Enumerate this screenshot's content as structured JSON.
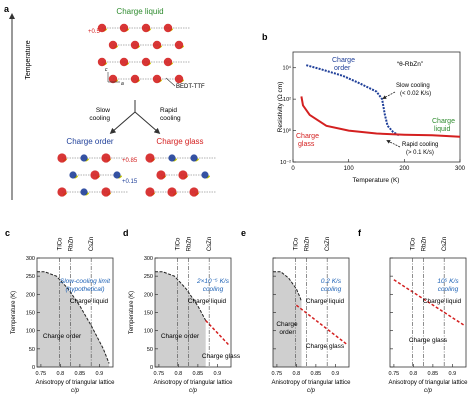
{
  "panels": {
    "a": {
      "letter": "a",
      "axis_label": "Temperature",
      "top_state": "Charge liquid",
      "charge_top": "+0.5",
      "molecule_label": "BEDT-TTF",
      "lattice_a": "a",
      "lattice_c": "c",
      "slow_label": [
        "Slow",
        "cooling"
      ],
      "rapid_label": [
        "Rapid",
        "cooling"
      ],
      "left_state": "Charge order",
      "right_state": "Charge glass",
      "charge_rich": "+0.85",
      "charge_poor": "+0.15"
    },
    "b": {
      "letter": "b",
      "compound": "“θ-RbZn”",
      "label_order": [
        "Charge",
        "order"
      ],
      "label_glass": [
        "Charge",
        "glass"
      ],
      "label_liquid": [
        "Charge",
        "liquid"
      ],
      "slow_label": [
        "Slow cooling",
        "(< 0.02 K/s)"
      ],
      "rapid_label": [
        "Rapid cooling",
        "(> 0.1 K/s)"
      ],
      "ylabel": "Resistivity (Ω cm)",
      "xlabel": "Temperature (K)",
      "xticks": [
        "0",
        "100",
        "200",
        "300"
      ],
      "yticks": [
        "10⁻²",
        "10⁰",
        "10²",
        "10⁴"
      ]
    },
    "phase": [
      {
        "letter": "c",
        "annotation": [
          "Slow-cooling limit",
          "(hypothetical)"
        ]
      },
      {
        "letter": "d",
        "annotation": [
          "2×10⁻⁵ K/s",
          "cooling"
        ]
      },
      {
        "letter": "e",
        "annotation": [
          "0.2 K/s",
          "cooling"
        ]
      },
      {
        "letter": "f",
        "annotation": [
          "10⁵ K/s",
          "cooling"
        ]
      }
    ],
    "phase_common": {
      "compounds": [
        "TlCo",
        "RbZn",
        "CsZn"
      ],
      "xticks": [
        "0.75",
        "0.8",
        "0.85",
        "0.9"
      ],
      "yticks": [
        "0",
        "50",
        "100",
        "150",
        "200",
        "250",
        "300"
      ],
      "ylabel": "Temperature (K)",
      "xlabel": [
        "Anisotropy of triangular lattice",
        "c/p"
      ],
      "charge_liquid": "Charge liquid",
      "charge_order": "Charge order",
      "charge_glass": "Charge glass",
      "charge_order_2": [
        "Charge",
        "order"
      ]
    }
  },
  "colors": {
    "order_blue": "#1f3f99",
    "glass_red": "#d42020",
    "liquid_green": "#2e8b2e",
    "annotation_blue": "#1a5fb4",
    "shade_gray": "#cfcfcf"
  },
  "chart_data": [
    {
      "type": "line",
      "panel": "b",
      "xlabel": "Temperature (K)",
      "ylabel": "Resistivity (Ω cm)",
      "xlim": [
        0,
        300
      ],
      "ylim": [
        0.01,
        100000
      ],
      "yscale": "log",
      "series": [
        {
          "name": "Slow cooling (< 0.02 K/s)",
          "points": [
            [
              190,
              0.5
            ],
            [
              180,
              0.8
            ],
            [
              170,
              2
            ],
            [
              165,
              10
            ],
            [
              160,
              100
            ],
            [
              150,
              300
            ],
            [
              120,
              1000
            ],
            [
              90,
              3000
            ],
            [
              50,
              8000
            ],
            [
              22,
              15000
            ]
          ]
        },
        {
          "name": "Rapid cooling (> 0.1 K/s)",
          "points": [
            [
              300,
              0.4
            ],
            [
              250,
              0.5
            ],
            [
              200,
              0.55
            ],
            [
              150,
              0.65
            ],
            [
              100,
              1
            ],
            [
              60,
              2
            ],
            [
              30,
              10
            ],
            [
              18,
              40
            ],
            [
              15,
              150
            ]
          ]
        }
      ]
    },
    {
      "type": "area",
      "panel": "c",
      "xlabel": "Anisotropy of triangular lattice c/p",
      "ylabel": "Temperature (K)",
      "xlim": [
        0.74,
        0.935
      ],
      "ylim": [
        0,
        300
      ],
      "charge_order_boundary": [
        [
          0.74,
          262
        ],
        [
          0.76,
          262
        ],
        [
          0.79,
          250
        ],
        [
          0.82,
          215
        ],
        [
          0.85,
          168
        ],
        [
          0.88,
          112
        ],
        [
          0.91,
          50
        ],
        [
          0.925,
          10
        ]
      ],
      "glass_line": []
    },
    {
      "type": "area",
      "panel": "d",
      "xlabel": "Anisotropy of triangular lattice c/p",
      "ylabel": "Temperature (K)",
      "xlim": [
        0.74,
        0.935
      ],
      "ylim": [
        0,
        300
      ],
      "charge_order_boundary": [
        [
          0.74,
          262
        ],
        [
          0.76,
          262
        ],
        [
          0.79,
          250
        ],
        [
          0.82,
          215
        ],
        [
          0.85,
          168
        ],
        [
          0.87,
          128
        ]
      ],
      "glass_line": [
        [
          0.87,
          128
        ],
        [
          0.93,
          60
        ]
      ]
    },
    {
      "type": "area",
      "panel": "e",
      "xlabel": "Anisotropy of triangular lattice c/p",
      "ylabel": "Temperature (K)",
      "xlim": [
        0.74,
        0.935
      ],
      "ylim": [
        0,
        300
      ],
      "charge_order_boundary": [
        [
          0.74,
          262
        ],
        [
          0.76,
          262
        ],
        [
          0.78,
          245
        ],
        [
          0.8,
          215
        ],
        [
          0.81,
          190
        ],
        [
          0.813,
          180
        ]
      ],
      "glass_line": [
        [
          0.8,
          170
        ],
        [
          0.93,
          62
        ]
      ]
    },
    {
      "type": "line",
      "panel": "f",
      "xlabel": "Anisotropy of triangular lattice c/p",
      "ylabel": "Temperature (K)",
      "xlim": [
        0.74,
        0.935
      ],
      "ylim": [
        0,
        300
      ],
      "charge_order_boundary": [],
      "glass_line": [
        [
          0.75,
          240
        ],
        [
          0.93,
          115
        ]
      ]
    }
  ]
}
